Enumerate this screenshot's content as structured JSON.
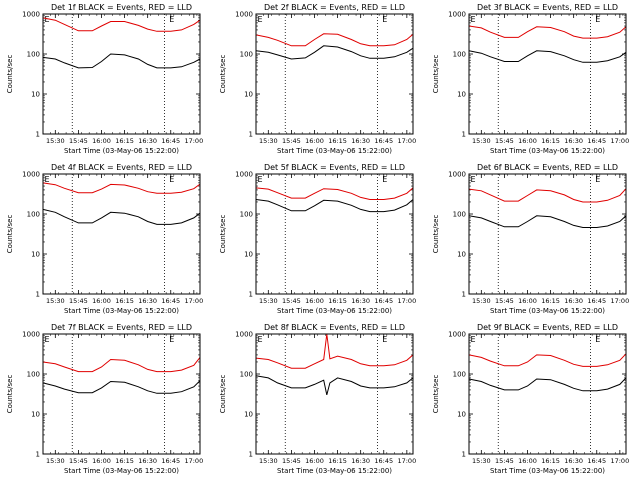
{
  "colors": {
    "events": "#000000",
    "lld": "#e00000",
    "axis": "#000000",
    "background": "#ffffff"
  },
  "y_axis_label": "Counts/sec",
  "x_axis_label": "Start Time (03-May-06 15:22:00)",
  "x_tick_labels": [
    "15:30",
    "15:45",
    "16:00",
    "16:15",
    "16:30",
    "16:45",
    "17:00"
  ],
  "y_tick_labels": [
    "1",
    "10",
    "100",
    "1000"
  ],
  "event_markers": [
    "E",
    "E"
  ],
  "chart_data": [
    {
      "type": "line",
      "title": "Det 1f BLACK = Events, RED = LLD",
      "x": [
        "15:22",
        "15:30",
        "15:36",
        "15:45",
        "15:54",
        "16:00",
        "16:06",
        "16:15",
        "16:24",
        "16:30",
        "16:36",
        "16:45",
        "16:52",
        "17:00",
        "17:04"
      ],
      "xlim": [
        "15:22",
        "17:04"
      ],
      "ylim": [
        1,
        1000
      ],
      "yscale": "log",
      "grid": false,
      "series": [
        {
          "name": "Events",
          "color": "#000000",
          "values": [
            82,
            75,
            60,
            45,
            46,
            65,
            100,
            95,
            75,
            55,
            45,
            45,
            48,
            62,
            75
          ]
        },
        {
          "name": "LLD",
          "color": "#e00000",
          "values": [
            800,
            700,
            550,
            380,
            380,
            500,
            650,
            650,
            520,
            420,
            370,
            370,
            400,
            550,
            700
          ]
        }
      ]
    },
    {
      "type": "line",
      "title": "Det 2f BLACK = Events, RED = LLD",
      "x": [
        "15:22",
        "15:30",
        "15:36",
        "15:45",
        "15:54",
        "16:00",
        "16:06",
        "16:15",
        "16:24",
        "16:30",
        "16:36",
        "16:45",
        "16:52",
        "17:00",
        "17:04"
      ],
      "xlim": [
        "15:22",
        "17:04"
      ],
      "ylim": [
        1,
        1000
      ],
      "yscale": "log",
      "grid": false,
      "series": [
        {
          "name": "Events",
          "color": "#000000",
          "values": [
            120,
            110,
            95,
            75,
            80,
            110,
            160,
            150,
            115,
            90,
            78,
            78,
            85,
            110,
            140
          ]
        },
        {
          "name": "LLD",
          "color": "#e00000",
          "values": [
            300,
            260,
            220,
            160,
            160,
            230,
            320,
            310,
            230,
            180,
            160,
            160,
            170,
            230,
            310
          ]
        }
      ]
    },
    {
      "type": "line",
      "title": "Det 3f BLACK = Events, RED = LLD",
      "x": [
        "15:22",
        "15:30",
        "15:36",
        "15:45",
        "15:54",
        "16:00",
        "16:06",
        "16:15",
        "16:24",
        "16:30",
        "16:36",
        "16:45",
        "16:52",
        "17:00",
        "17:04"
      ],
      "xlim": [
        "15:22",
        "17:04"
      ],
      "ylim": [
        1,
        1000
      ],
      "yscale": "log",
      "grid": false,
      "series": [
        {
          "name": "Events",
          "color": "#000000",
          "values": [
            120,
            105,
            85,
            65,
            65,
            90,
            120,
            115,
            90,
            72,
            62,
            62,
            68,
            85,
            110
          ]
        },
        {
          "name": "LLD",
          "color": "#e00000",
          "values": [
            500,
            450,
            350,
            260,
            260,
            360,
            480,
            460,
            360,
            280,
            250,
            250,
            270,
            350,
            480
          ]
        }
      ]
    },
    {
      "type": "line",
      "title": "Det 4f BLACK = Events, RED = LLD",
      "x": [
        "15:22",
        "15:30",
        "15:36",
        "15:45",
        "15:54",
        "16:00",
        "16:06",
        "16:15",
        "16:24",
        "16:30",
        "16:36",
        "16:45",
        "16:52",
        "17:00",
        "17:04"
      ],
      "xlim": [
        "15:22",
        "17:04"
      ],
      "ylim": [
        1,
        1000
      ],
      "yscale": "log",
      "grid": false,
      "series": [
        {
          "name": "Events",
          "color": "#000000",
          "values": [
            130,
            110,
            85,
            60,
            60,
            80,
            110,
            105,
            85,
            65,
            55,
            55,
            60,
            80,
            105
          ]
        },
        {
          "name": "LLD",
          "color": "#e00000",
          "values": [
            600,
            540,
            440,
            340,
            340,
            420,
            550,
            530,
            440,
            360,
            330,
            330,
            350,
            430,
            560
          ]
        }
      ]
    },
    {
      "type": "line",
      "title": "Det 5f BLACK = Events, RED = LLD",
      "x": [
        "15:22",
        "15:30",
        "15:36",
        "15:45",
        "15:54",
        "16:00",
        "16:06",
        "16:15",
        "16:24",
        "16:30",
        "16:36",
        "16:45",
        "16:52",
        "17:00",
        "17:04"
      ],
      "xlim": [
        "15:22",
        "17:04"
      ],
      "ylim": [
        1,
        1000
      ],
      "yscale": "log",
      "grid": false,
      "series": [
        {
          "name": "Events",
          "color": "#000000",
          "values": [
            230,
            210,
            170,
            120,
            120,
            160,
            220,
            210,
            165,
            130,
            115,
            115,
            125,
            170,
            230
          ]
        },
        {
          "name": "LLD",
          "color": "#e00000",
          "values": [
            450,
            420,
            340,
            250,
            250,
            330,
            430,
            410,
            330,
            260,
            230,
            230,
            250,
            330,
            450
          ]
        }
      ]
    },
    {
      "type": "line",
      "title": "Det 6f BLACK = Events, RED = LLD",
      "x": [
        "15:22",
        "15:30",
        "15:36",
        "15:45",
        "15:54",
        "16:00",
        "16:06",
        "16:15",
        "16:24",
        "16:30",
        "16:36",
        "16:45",
        "16:52",
        "17:00",
        "17:04"
      ],
      "xlim": [
        "15:22",
        "17:04"
      ],
      "ylim": [
        1,
        1000
      ],
      "yscale": "log",
      "grid": false,
      "series": [
        {
          "name": "Events",
          "color": "#000000",
          "values": [
            90,
            80,
            65,
            48,
            48,
            65,
            90,
            85,
            65,
            52,
            46,
            46,
            50,
            65,
            90
          ]
        },
        {
          "name": "LLD",
          "color": "#e00000",
          "values": [
            420,
            380,
            300,
            210,
            210,
            290,
            400,
            380,
            300,
            230,
            200,
            200,
            220,
            290,
            430
          ]
        }
      ]
    },
    {
      "type": "line",
      "title": "Det 7f BLACK = Events, RED = LLD",
      "x": [
        "15:22",
        "15:30",
        "15:36",
        "15:45",
        "15:54",
        "16:00",
        "16:06",
        "16:15",
        "16:24",
        "16:30",
        "16:36",
        "16:45",
        "16:52",
        "17:00",
        "17:04"
      ],
      "xlim": [
        "15:22",
        "17:04"
      ],
      "ylim": [
        1,
        1000
      ],
      "yscale": "log",
      "grid": false,
      "series": [
        {
          "name": "Events",
          "color": "#000000",
          "values": [
            60,
            50,
            42,
            34,
            34,
            45,
            65,
            62,
            48,
            38,
            33,
            33,
            36,
            48,
            68
          ]
        },
        {
          "name": "LLD",
          "color": "#e00000",
          "values": [
            200,
            180,
            150,
            115,
            115,
            150,
            230,
            220,
            170,
            130,
            115,
            115,
            125,
            165,
            260
          ]
        }
      ]
    },
    {
      "type": "line",
      "title": "Det 8f BLACK = Events, RED = LLD",
      "x": [
        "15:22",
        "15:30",
        "15:36",
        "15:45",
        "15:54",
        "16:00",
        "16:06",
        "16:08",
        "16:10",
        "16:15",
        "16:24",
        "16:30",
        "16:36",
        "16:45",
        "16:52",
        "17:00",
        "17:04"
      ],
      "xlim": [
        "15:22",
        "17:04"
      ],
      "ylim": [
        1,
        1000
      ],
      "yscale": "log",
      "grid": false,
      "series": [
        {
          "name": "Events",
          "color": "#000000",
          "values": [
            90,
            80,
            60,
            45,
            45,
            55,
            70,
            30,
            60,
            80,
            65,
            50,
            45,
            45,
            48,
            60,
            80
          ]
        },
        {
          "name": "LLD",
          "color": "#e00000",
          "values": [
            250,
            230,
            190,
            140,
            140,
            180,
            230,
            1000,
            240,
            280,
            230,
            180,
            160,
            160,
            170,
            220,
            300
          ]
        }
      ]
    },
    {
      "type": "line",
      "title": "Det 9f BLACK = Events, RED = LLD",
      "x": [
        "15:22",
        "15:30",
        "15:36",
        "15:45",
        "15:54",
        "16:00",
        "16:06",
        "16:15",
        "16:24",
        "16:30",
        "16:36",
        "16:45",
        "16:52",
        "17:00",
        "17:04"
      ],
      "xlim": [
        "15:22",
        "17:04"
      ],
      "ylim": [
        1,
        1000
      ],
      "yscale": "log",
      "grid": false,
      "series": [
        {
          "name": "Events",
          "color": "#000000",
          "values": [
            75,
            65,
            52,
            40,
            40,
            50,
            75,
            72,
            55,
            44,
            38,
            38,
            42,
            55,
            80
          ]
        },
        {
          "name": "LLD",
          "color": "#e00000",
          "values": [
            300,
            260,
            210,
            160,
            160,
            200,
            300,
            290,
            220,
            175,
            155,
            155,
            170,
            220,
            320
          ]
        }
      ]
    }
  ]
}
